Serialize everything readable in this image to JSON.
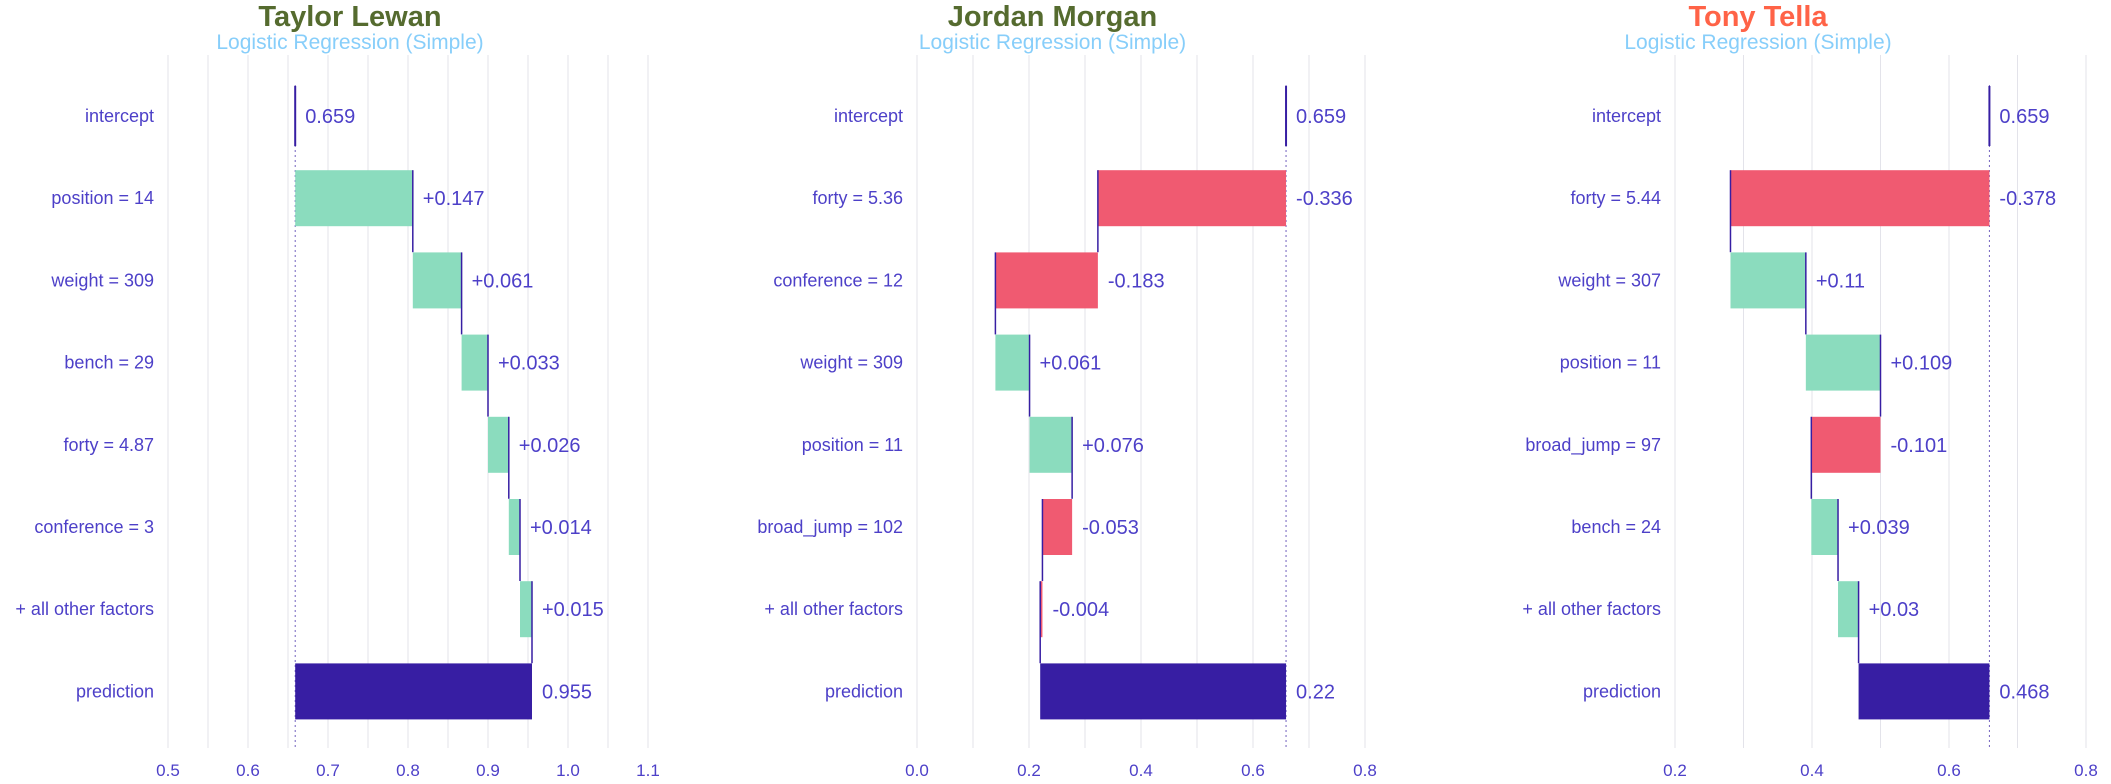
{
  "colors": {
    "positive": "#8bdcbe",
    "negative": "#f05a71",
    "prediction": "#371ea3",
    "connector": "#371ea3",
    "label": "#4d40c8",
    "subtitle": "#87cefa",
    "grid": "#e3e3ea"
  },
  "chart_data": [
    {
      "type": "bar",
      "title": "Taylor Lewan",
      "title_color": "#556b2f",
      "subtitle": "Logistic Regression (Simple)",
      "xlim": [
        0.5,
        1.1
      ],
      "xticks": [
        0.5,
        0.6,
        0.7,
        0.8,
        0.9,
        1.0,
        1.1
      ],
      "xtick_labels": [
        "0.5",
        "0.6",
        "0.7",
        "0.8",
        "0.9",
        "1.0",
        "1.1"
      ],
      "baseline": 0.659,
      "prediction": 0.955,
      "rows": [
        {
          "label": "intercept",
          "contribution": 0.659,
          "value_label": "0.659",
          "kind": "intercept"
        },
        {
          "label": "position = 14",
          "contribution": 0.147,
          "value_label": "+0.147",
          "kind": "positive"
        },
        {
          "label": "weight = 309",
          "contribution": 0.061,
          "value_label": "+0.061",
          "kind": "positive"
        },
        {
          "label": "bench = 29",
          "contribution": 0.033,
          "value_label": "+0.033",
          "kind": "positive"
        },
        {
          "label": "forty = 4.87",
          "contribution": 0.026,
          "value_label": "+0.026",
          "kind": "positive"
        },
        {
          "label": "conference = 3",
          "contribution": 0.014,
          "value_label": "+0.014",
          "kind": "positive"
        },
        {
          "label": "+ all other factors",
          "contribution": 0.015,
          "value_label": "+0.015",
          "kind": "positive"
        },
        {
          "label": "prediction",
          "contribution": 0.955,
          "value_label": "0.955",
          "kind": "prediction"
        }
      ]
    },
    {
      "type": "bar",
      "title": "Jordan Morgan",
      "title_color": "#556b2f",
      "subtitle": "Logistic Regression (Simple)",
      "xlim": [
        0.0,
        0.8
      ],
      "xticks": [
        0.0,
        0.2,
        0.4,
        0.6,
        0.8
      ],
      "xtick_labels": [
        "0.0",
        "0.2",
        "0.4",
        "0.6",
        "0.8"
      ],
      "baseline": 0.659,
      "prediction": 0.22,
      "rows": [
        {
          "label": "intercept",
          "contribution": 0.659,
          "value_label": "0.659",
          "kind": "intercept"
        },
        {
          "label": "forty = 5.36",
          "contribution": -0.336,
          "value_label": "-0.336",
          "kind": "negative"
        },
        {
          "label": "conference = 12",
          "contribution": -0.183,
          "value_label": "-0.183",
          "kind": "negative"
        },
        {
          "label": "weight = 309",
          "contribution": 0.061,
          "value_label": "+0.061",
          "kind": "positive"
        },
        {
          "label": "position = 11",
          "contribution": 0.076,
          "value_label": "+0.076",
          "kind": "positive"
        },
        {
          "label": "broad_jump = 102",
          "contribution": -0.053,
          "value_label": "-0.053",
          "kind": "negative"
        },
        {
          "label": "+ all other factors",
          "contribution": -0.004,
          "value_label": "-0.004",
          "kind": "negative"
        },
        {
          "label": "prediction",
          "contribution": 0.22,
          "value_label": "0.22",
          "kind": "prediction"
        }
      ]
    },
    {
      "type": "bar",
      "title": "Tony Tella",
      "title_color": "#ff6347",
      "subtitle": "Logistic Regression (Simple)",
      "xlim": [
        0.2,
        0.8
      ],
      "xticks": [
        0.2,
        0.4,
        0.6,
        0.8
      ],
      "xtick_labels": [
        "0.2",
        "0.4",
        "0.6",
        "0.8"
      ],
      "baseline": 0.659,
      "prediction": 0.468,
      "rows": [
        {
          "label": "intercept",
          "contribution": 0.659,
          "value_label": "0.659",
          "kind": "intercept"
        },
        {
          "label": "forty = 5.44",
          "contribution": -0.378,
          "value_label": "-0.378",
          "kind": "negative"
        },
        {
          "label": "weight = 307",
          "contribution": 0.11,
          "value_label": "+0.11",
          "kind": "positive"
        },
        {
          "label": "position = 11",
          "contribution": 0.109,
          "value_label": "+0.109",
          "kind": "positive"
        },
        {
          "label": "broad_jump = 97",
          "contribution": -0.101,
          "value_label": "-0.101",
          "kind": "negative"
        },
        {
          "label": "bench = 24",
          "contribution": 0.039,
          "value_label": "+0.039",
          "kind": "positive"
        },
        {
          "label": "+ all other factors",
          "contribution": 0.03,
          "value_label": "+0.03",
          "kind": "positive"
        },
        {
          "label": "prediction",
          "contribution": 0.468,
          "value_label": "0.468",
          "kind": "prediction"
        }
      ]
    }
  ]
}
